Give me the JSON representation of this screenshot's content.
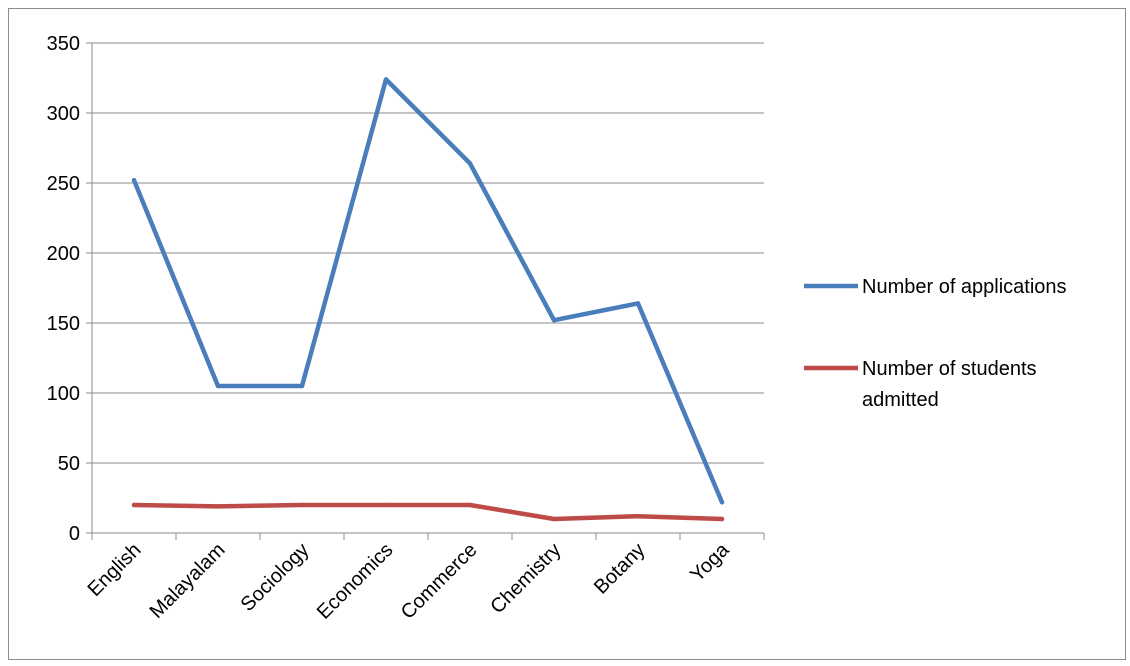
{
  "chart_data": {
    "type": "line",
    "title": "",
    "xlabel": "",
    "ylabel": "",
    "categories": [
      "English",
      "Malayalam",
      "Sociology",
      "Economics",
      "Commerce",
      "Chemistry",
      "Botany",
      "Yoga"
    ],
    "ylim": [
      0,
      350
    ],
    "yticks": [
      "0",
      "50",
      "100",
      "150",
      "200",
      "250",
      "300",
      "350"
    ],
    "grid": true,
    "legend_position": "right",
    "series": [
      {
        "name": "Number of applications",
        "legend_lines": [
          "Number of applications"
        ],
        "color": "#4a7ebb",
        "values": [
          252,
          105,
          105,
          324,
          264,
          152,
          164,
          22
        ]
      },
      {
        "name": "Number of students admitted",
        "legend_lines": [
          "Number of students",
          "admitted"
        ],
        "color": "#be4b48",
        "values": [
          20,
          19,
          20,
          20,
          20,
          10,
          12,
          10
        ]
      }
    ]
  }
}
